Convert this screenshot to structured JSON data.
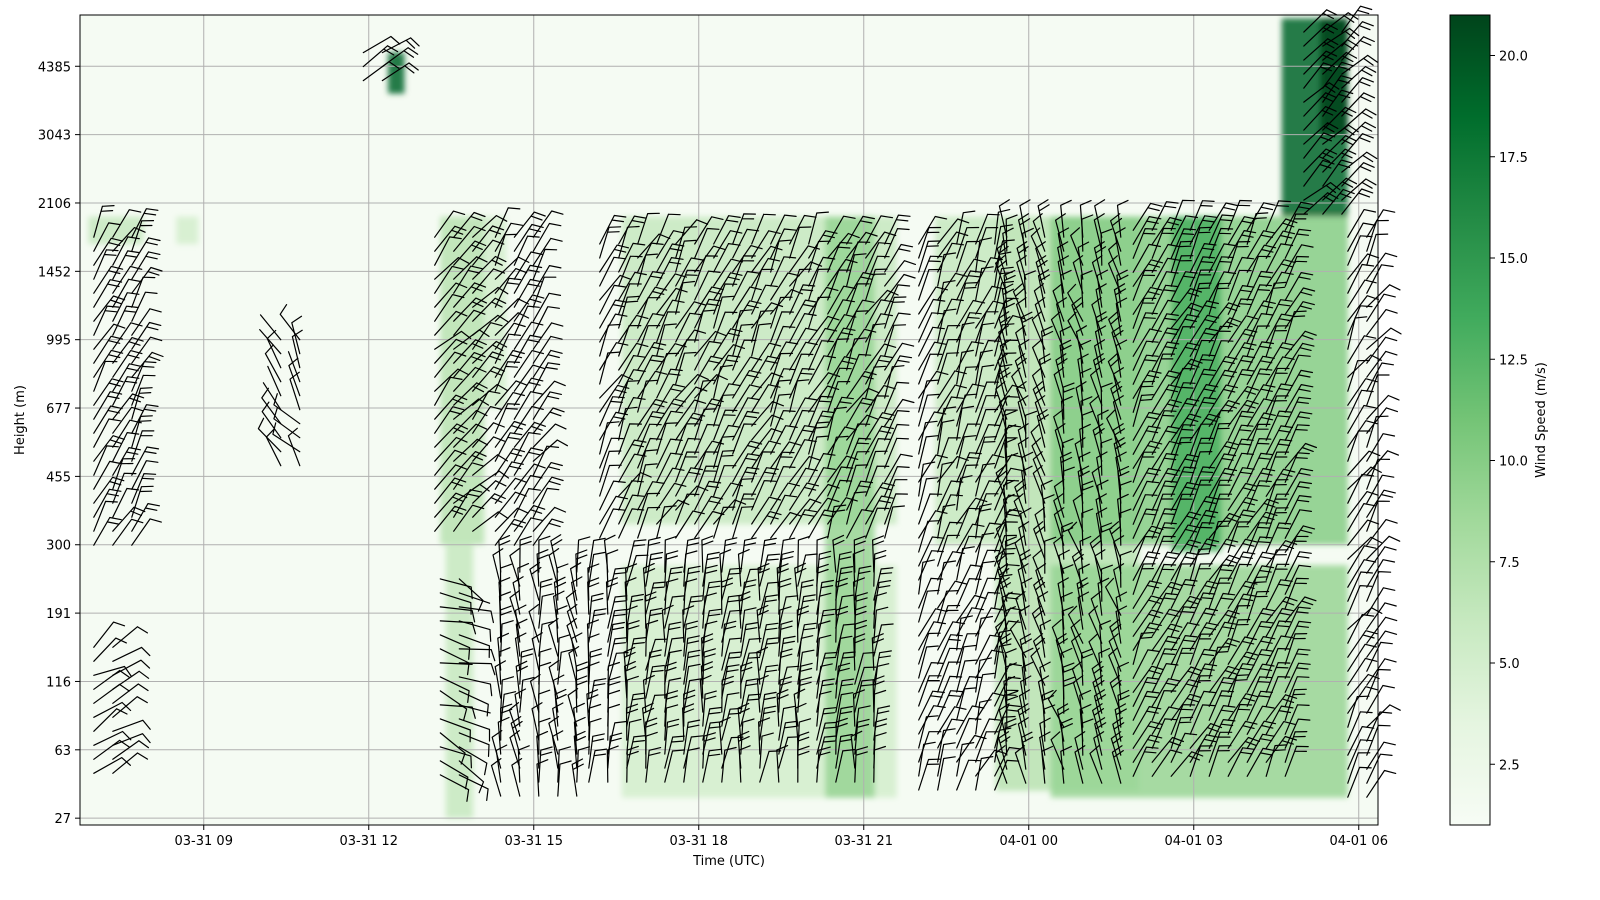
{
  "chart_data": {
    "type": "heatmap",
    "xlabel": "Time (UTC)",
    "ylabel": "Height (m)",
    "x_ticks": [
      "03-31 09",
      "03-31 12",
      "03-31 15",
      "03-31 18",
      "03-31 21",
      "04-01 00",
      "04-01 03",
      "04-01 06"
    ],
    "x_range_hours": [
      6.75,
      30.35
    ],
    "y_ticks": [
      "27",
      "63",
      "116",
      "191",
      "300",
      "455",
      "677",
      "995",
      "1452",
      "2106",
      "3043",
      "4385"
    ],
    "y_range_levels": [
      -0.1,
      11.75
    ],
    "colorbar": {
      "label": "Wind Speed (m/s)",
      "ticks": [
        "2.5",
        "5.0",
        "7.5",
        "10.0",
        "12.5",
        "15.0",
        "17.5",
        "20.0"
      ],
      "range": [
        1.0,
        21.0
      ],
      "cmap": "Greens"
    },
    "grid": true,
    "bands": [
      {
        "t0": 6.9,
        "t1": 7.9,
        "l0": 8.4,
        "l1": 8.8,
        "speed": 6
      },
      {
        "t0": 8.5,
        "t1": 8.9,
        "l0": 8.4,
        "l1": 8.8,
        "speed": 5
      },
      {
        "t0": 12.35,
        "t1": 12.65,
        "l0": 10.6,
        "l1": 11.2,
        "speed": 19
      },
      {
        "t0": 13.3,
        "t1": 14.1,
        "l0": 4.0,
        "l1": 8.8,
        "speed": 7
      },
      {
        "t0": 13.4,
        "t1": 13.9,
        "l0": 0.0,
        "l1": 4.0,
        "speed": 6
      },
      {
        "t0": 14.1,
        "t1": 14.5,
        "l0": 6.0,
        "l1": 8.8,
        "speed": 5
      },
      {
        "t0": 16.6,
        "t1": 21.6,
        "l0": 0.3,
        "l1": 3.7,
        "speed": 5
      },
      {
        "t0": 16.6,
        "t1": 21.6,
        "l0": 4.3,
        "l1": 8.8,
        "speed": 6
      },
      {
        "t0": 20.3,
        "t1": 21.2,
        "l0": 0.3,
        "l1": 8.8,
        "speed": 9
      },
      {
        "t0": 22.3,
        "t1": 23.4,
        "l0": 4.0,
        "l1": 8.8,
        "speed": 6
      },
      {
        "t0": 23.4,
        "t1": 26.0,
        "l0": 0.4,
        "l1": 8.8,
        "speed": 7
      },
      {
        "t0": 24.4,
        "t1": 29.8,
        "l0": 0.3,
        "l1": 3.7,
        "speed": 9
      },
      {
        "t0": 24.4,
        "t1": 29.8,
        "l0": 4.0,
        "l1": 8.8,
        "speed": 10
      },
      {
        "t0": 26.6,
        "t1": 27.5,
        "l0": 3.9,
        "l1": 8.8,
        "speed": 13
      },
      {
        "t0": 28.6,
        "t1": 29.8,
        "l0": 8.8,
        "l1": 11.7,
        "speed": 19
      },
      {
        "t0": 29.3,
        "t1": 29.8,
        "l0": 10.0,
        "l1": 11.7,
        "speed": 21
      }
    ],
    "barb_groups": [
      {
        "t0": 7.0,
        "t1": 7.8,
        "l0": 3.8,
        "l1": 8.5,
        "u": 5,
        "v": 9
      },
      {
        "t0": 7.0,
        "t1": 7.6,
        "l0": 0.5,
        "l1": 2.5,
        "u": 6,
        "v": 4
      },
      {
        "t0": 10.4,
        "t1": 10.8,
        "l0": 5.0,
        "l1": 7.0,
        "u": -3,
        "v": 5
      },
      {
        "t0": 11.9,
        "t1": 12.4,
        "l0": 10.7,
        "l1": 11.2,
        "u": 9,
        "v": 6
      },
      {
        "t0": 13.2,
        "t1": 14.2,
        "l0": 4.0,
        "l1": 8.5,
        "u": 6,
        "v": 7
      },
      {
        "t0": 13.3,
        "t1": 13.9,
        "l0": 0.5,
        "l1": 3.5,
        "u": 6,
        "v": -2
      },
      {
        "t0": 14.3,
        "t1": 15.2,
        "l0": 3.9,
        "l1": 8.5,
        "u": 5,
        "v": 8
      },
      {
        "t0": 14.4,
        "t1": 15.8,
        "l0": 0.3,
        "l1": 3.6,
        "u": -1,
        "v": 9
      },
      {
        "t0": 16.2,
        "t1": 21.5,
        "l0": 4.0,
        "l1": 8.4,
        "u": 4,
        "v": 8
      },
      {
        "t0": 16.0,
        "t1": 21.5,
        "l0": 0.5,
        "l1": 3.6,
        "u": 1,
        "v": 10
      },
      {
        "t0": 22.0,
        "t1": 23.6,
        "l0": 0.4,
        "l1": 8.4,
        "u": 3,
        "v": 8
      },
      {
        "t0": 23.6,
        "t1": 25.8,
        "l0": 0.5,
        "l1": 8.5,
        "u": -2,
        "v": 9
      },
      {
        "t0": 25.9,
        "t1": 29.0,
        "l0": 0.5,
        "l1": 8.6,
        "u": 5,
        "v": 10
      },
      {
        "t0": 29.0,
        "t1": 29.8,
        "l0": 8.8,
        "l1": 11.5,
        "u": 9,
        "v": 9
      },
      {
        "t0": 29.8,
        "t1": 30.3,
        "l0": 0.3,
        "l1": 8.5,
        "u": 4,
        "v": 7
      }
    ]
  }
}
